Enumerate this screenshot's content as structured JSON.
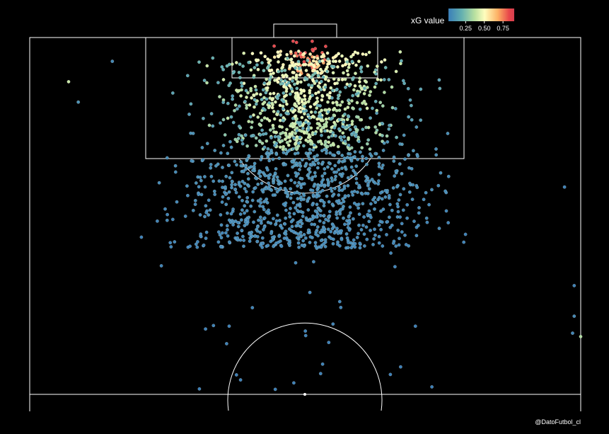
{
  "chart_data": {
    "type": "scatter",
    "description_kind": "shot map on half pitch",
    "title": "",
    "legend": {
      "title": "xG value",
      "ticks": [
        "0.25",
        "0.50",
        "0.75"
      ],
      "tick_values": [
        0.25,
        0.5,
        0.75
      ],
      "range": [
        0.02,
        0.9
      ],
      "placement": "top-right",
      "colors": [
        "#3a7fb8",
        "#64b0b0",
        "#b8e0a0",
        "#fefebe",
        "#fdb165",
        "#e8474a",
        "#d53e4f"
      ]
    },
    "pitch": {
      "units": "pitch coordinates (x across 0-68 width, y distance from goal line 0-52.5 half length)",
      "width": 68,
      "half_length": 52.5
    },
    "point_clusters": [
      {
        "zone": "six-yard box",
        "count": 45,
        "x_range": [
          29,
          39
        ],
        "y_range": [
          0.5,
          5.5
        ],
        "xg_range": [
          0.35,
          0.85
        ]
      },
      {
        "zone": "penalty box central",
        "count": 650,
        "x_range": [
          20,
          48
        ],
        "y_range": [
          2,
          16.5
        ],
        "xg_range": [
          0.12,
          0.5
        ]
      },
      {
        "zone": "penalty box wide",
        "count": 260,
        "x_range": [
          14,
          54
        ],
        "y_range": [
          3,
          16.5
        ],
        "xg_range": [
          0.04,
          0.2
        ]
      },
      {
        "zone": "outside box",
        "count": 900,
        "x_range": [
          12,
          56
        ],
        "y_range": [
          16.5,
          31
        ],
        "xg_range": [
          0.02,
          0.08
        ]
      },
      {
        "zone": "long range",
        "count": 28,
        "x_range": [
          5,
          62
        ],
        "y_range": [
          31,
          52
        ],
        "xg_range": [
          0.01,
          0.04
        ]
      }
    ],
    "outlier_points": [
      {
        "x": 4.8,
        "y": 6.5,
        "xg": 0.35
      },
      {
        "x": 6.0,
        "y": 9.5,
        "xg": 0.08
      },
      {
        "x": 10.2,
        "y": 3.5,
        "xg": 0.05
      },
      {
        "x": 66.0,
        "y": 22.0,
        "xg": 0.03
      },
      {
        "x": 67.2,
        "y": 36.5,
        "xg": 0.03
      },
      {
        "x": 67.2,
        "y": 41.0,
        "xg": 0.05
      },
      {
        "x": 67.0,
        "y": 43.5,
        "xg": 0.04
      },
      {
        "x": 68.0,
        "y": 44.0,
        "xg": 0.3
      }
    ]
  },
  "credit": "@DatoFutbol_cl"
}
